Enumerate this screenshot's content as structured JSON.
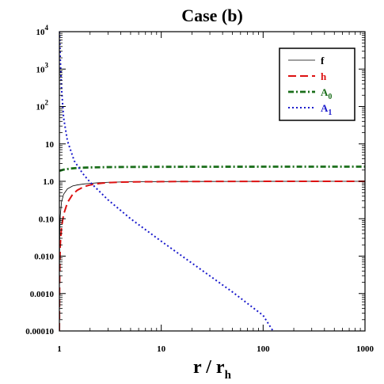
{
  "chart_data": {
    "type": "line",
    "title": "Case (b)",
    "xlabel": "r / r",
    "xlabel_sub": "h",
    "ylabel": "",
    "x_scale": "log",
    "y_scale": "log",
    "xlim": [
      1,
      1000
    ],
    "ylim": [
      0.0001,
      10000
    ],
    "grid": false,
    "legend_position": "top-right",
    "x_ticks": [
      {
        "value": 1,
        "label": "1"
      },
      {
        "value": 10,
        "label": "10"
      },
      {
        "value": 100,
        "label": "100"
      },
      {
        "value": 1000,
        "label": "1000"
      }
    ],
    "y_ticks": [
      {
        "value": 0.0001,
        "label": "0.00010"
      },
      {
        "value": 0.001,
        "label": "0.0010"
      },
      {
        "value": 0.01,
        "label": "0.010"
      },
      {
        "value": 0.1,
        "label": "0.10"
      },
      {
        "value": 1,
        "label": "1.0"
      },
      {
        "value": 10,
        "label": "10"
      },
      {
        "value": 100,
        "label": "10",
        "sup": "2"
      },
      {
        "value": 1000,
        "label": "10",
        "sup": "3"
      },
      {
        "value": 10000,
        "label": "10",
        "sup": "4"
      }
    ],
    "series": [
      {
        "name": "f",
        "name_sub": "",
        "color": "#000000",
        "style": "solid",
        "x": [
          1.0,
          1.003,
          1.01,
          1.02,
          1.05,
          1.1,
          1.2,
          1.35,
          1.5,
          1.75,
          2,
          2.5,
          3,
          4,
          5,
          7,
          10,
          20,
          50,
          100,
          1000
        ],
        "y": [
          0.0001,
          0.005,
          0.05,
          0.12,
          0.28,
          0.45,
          0.63,
          0.75,
          0.8,
          0.85,
          0.88,
          0.92,
          0.94,
          0.96,
          0.97,
          0.98,
          0.985,
          0.99,
          0.995,
          0.997,
          1.0
        ]
      },
      {
        "name": "h",
        "name_sub": "",
        "color": "#dd1111",
        "style": "dashed",
        "x": [
          1.0,
          1.005,
          1.01,
          1.02,
          1.05,
          1.1,
          1.2,
          1.35,
          1.5,
          1.75,
          2,
          2.5,
          3,
          4,
          5,
          7,
          10,
          20,
          50,
          100,
          1000
        ],
        "y": [
          0.0001,
          0.002,
          0.006,
          0.02,
          0.06,
          0.13,
          0.27,
          0.45,
          0.58,
          0.72,
          0.8,
          0.88,
          0.92,
          0.95,
          0.96,
          0.975,
          0.98,
          0.99,
          0.995,
          0.997,
          1.0
        ]
      },
      {
        "name": "A",
        "name_sub": "0",
        "color": "#1a6e1a",
        "style": "dashdot",
        "x": [
          1.0,
          1.1,
          1.3,
          1.6,
          2,
          3,
          5,
          10,
          30,
          100,
          1000
        ],
        "y": [
          1.9,
          2.05,
          2.2,
          2.3,
          2.35,
          2.4,
          2.42,
          2.44,
          2.45,
          2.46,
          2.46
        ]
      },
      {
        "name": "A",
        "name_sub": "1",
        "color": "#1a1acc",
        "style": "dotted",
        "x": [
          1.0,
          1.01,
          1.02,
          1.05,
          1.1,
          1.2,
          1.4,
          1.7,
          2,
          3,
          5,
          10,
          20,
          50,
          100,
          125
        ],
        "y": [
          10000,
          5000,
          2000,
          300,
          50,
          12,
          3.5,
          1.6,
          0.95,
          0.32,
          0.1,
          0.025,
          0.0065,
          0.0011,
          0.00026,
          0.0001
        ]
      }
    ]
  }
}
